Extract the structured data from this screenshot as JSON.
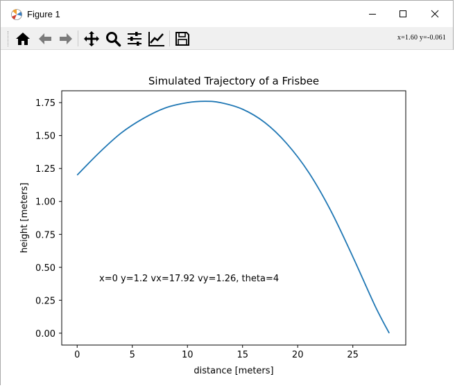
{
  "window": {
    "title": "Figure 1"
  },
  "toolbar": {
    "buttons": [
      "home-icon",
      "back-arrow-icon",
      "forward-arrow-icon",
      "pan-icon",
      "zoom-icon",
      "subplots-config-icon",
      "edit-axis-icon",
      "save-icon"
    ],
    "coord_readout": "x=1.60  y=-0.061"
  },
  "colors": {
    "line": "#1f77b4",
    "axes": "#000000",
    "toolbar_bg": "#f0f0f0"
  },
  "chart_data": {
    "type": "line",
    "title": "Simulated Trajectory of a Frisbee",
    "xlabel": "distance [meters]",
    "ylabel": "height [meters]",
    "xlim": [
      -1.4,
      29.8
    ],
    "ylim": [
      -0.09,
      1.84
    ],
    "xticks": [
      0,
      5,
      10,
      15,
      20,
      25
    ],
    "xtick_labels": [
      "0",
      "5",
      "10",
      "15",
      "20",
      "25"
    ],
    "yticks": [
      0.0,
      0.25,
      0.5,
      0.75,
      1.0,
      1.25,
      1.5,
      1.75
    ],
    "ytick_labels": [
      "0.00",
      "0.25",
      "0.50",
      "0.75",
      "1.00",
      "1.25",
      "1.50",
      "1.75"
    ],
    "grid": false,
    "annotation": {
      "text": "x=0 y=1.2 vx=17.92 vy=1.26, theta=4",
      "x": 2,
      "y": 0.42
    },
    "series": [
      {
        "x": [
          0,
          2,
          4,
          6,
          8,
          10,
          11.6,
          13,
          15,
          17,
          19,
          21,
          23,
          25,
          27,
          28.3
        ],
        "y": [
          1.2,
          1.37,
          1.52,
          1.63,
          1.71,
          1.75,
          1.76,
          1.75,
          1.7,
          1.6,
          1.44,
          1.22,
          0.93,
          0.58,
          0.21,
          0.0
        ]
      }
    ]
  }
}
